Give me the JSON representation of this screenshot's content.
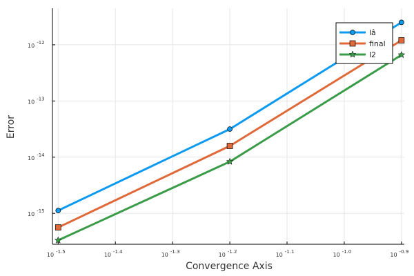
{
  "chart_data": {
    "type": "line",
    "title": "",
    "xlabel": "Convergence Axis",
    "ylabel": "Error",
    "x_scale": "log10",
    "y_scale": "log10",
    "xlim_log10": [
      -1.51,
      -0.895
    ],
    "ylim_log10": [
      -15.55,
      -11.35
    ],
    "x_ticks_log10": [
      -1.5,
      -1.4,
      -1.3,
      -1.2,
      -1.1,
      -1.0,
      -0.9
    ],
    "x_tick_labels": [
      "-1.5",
      "-1.4",
      "-1.3",
      "-1.2",
      "-1.1",
      "-1.0",
      "-0.9"
    ],
    "y_ticks_log10": [
      -15,
      -14,
      -13,
      -12
    ],
    "y_tick_labels": [
      "-15",
      "-14",
      "-13",
      "-12"
    ],
    "tick_base": "10",
    "grid": true,
    "legend_position": "top-right",
    "x_log10": [
      -1.5,
      -1.2,
      -0.9
    ],
    "series": [
      {
        "name": "lâ",
        "color": "#0b9af0",
        "marker": "circle",
        "values_log10": [
          -14.95,
          -13.5,
          -11.6
        ]
      },
      {
        "name": "final",
        "color": "#e0693a",
        "marker": "square",
        "values_log10": [
          -15.25,
          -13.8,
          -11.92
        ]
      },
      {
        "name": "l2",
        "color": "#3a9c48",
        "marker": "star",
        "values_log10": [
          -15.48,
          -14.08,
          -12.18
        ]
      }
    ]
  }
}
